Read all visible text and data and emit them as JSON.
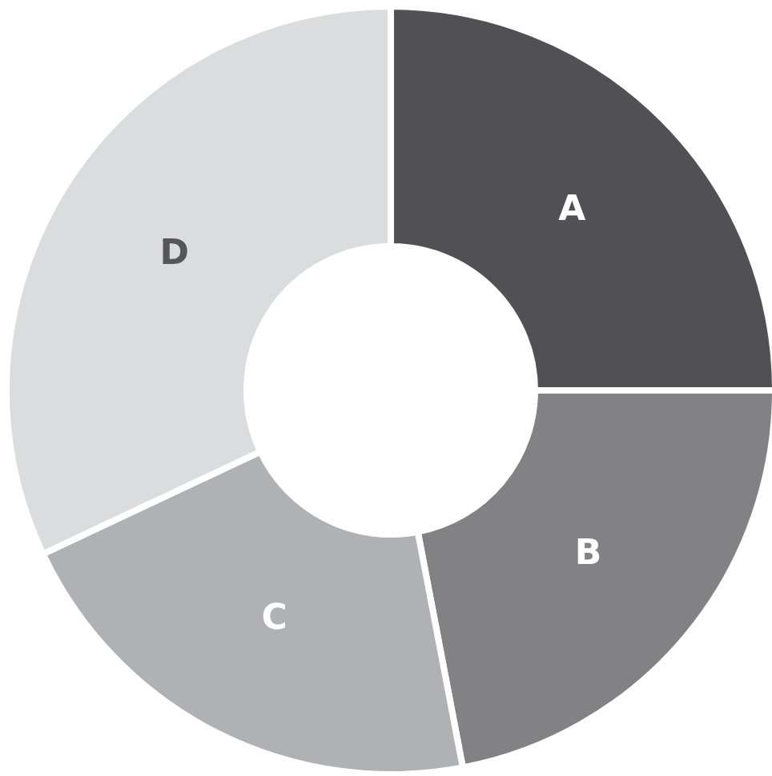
{
  "chart_data": {
    "type": "donut",
    "categories": [
      "A",
      "B",
      "C",
      "D"
    ],
    "values": [
      25,
      22,
      21,
      32
    ],
    "colors": [
      "#505055",
      "#828285",
      "#b0b1b4",
      "#dbdcde"
    ]
  }
}
